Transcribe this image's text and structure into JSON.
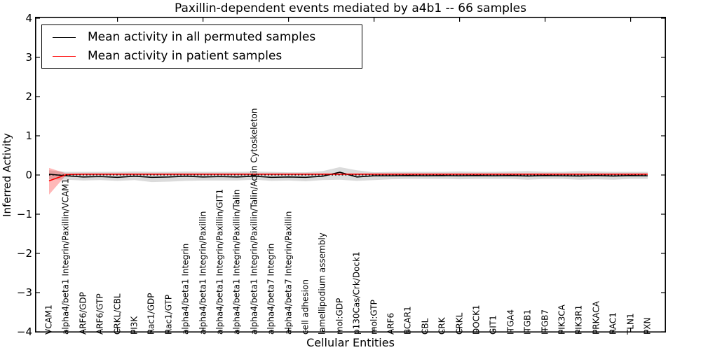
{
  "title": "Paxillin-dependent events mediated by a4b1 -- 66 samples",
  "axes": {
    "xlabel": "Cellular Entities",
    "ylabel": "Inferred Activity",
    "ytick_labels": [
      "4",
      "3",
      "2",
      "1",
      "0",
      "−1",
      "−2",
      "−3",
      "−4"
    ]
  },
  "legend": {
    "position": "upper left",
    "entries": [
      {
        "label": "Mean activity in all permuted samples",
        "color": "#000000"
      },
      {
        "label": "Mean activity in patient samples",
        "color": "#ff0000"
      }
    ]
  },
  "colors": {
    "permuted_line": "#000000",
    "patient_line": "#ff0000",
    "permuted_band": "rgba(0,0,0,0.14)",
    "patient_band": "rgba(255,0,0,0.28)",
    "frame": "#000000",
    "background": "#ffffff"
  },
  "chart_data": {
    "type": "line",
    "title": "Paxillin-dependent events mediated by a4b1 -- 66 samples",
    "xlabel": "Cellular Entities",
    "ylabel": "Inferred Activity",
    "ylim": [
      -4,
      4
    ],
    "yticks": [
      -4,
      -3,
      -2,
      -1,
      0,
      1,
      2,
      3,
      4
    ],
    "grid": false,
    "legend_position": "upper left",
    "zero_reference_line": {
      "y": 0,
      "style": "dotted",
      "color": "#000000"
    },
    "xtick_major_indices": [
      4,
      9,
      14,
      19,
      24,
      29,
      34
    ],
    "categories": [
      "VCAM1",
      "alpha4/beta1 Integrin/Paxillin/VCAM1",
      "ARF6/GDP",
      "ARF6/GTP",
      "CRKL/CBL",
      "PI3K",
      "Rac1/GDP",
      "Rac1/GTP",
      "alpha4/beta1 Integrin",
      "alpha4/beta1 Integrin/Paxillin",
      "alpha4/beta1 Integrin/Paxillin/GIT1",
      "alpha4/beta1 Integrin/Paxillin/Talin",
      "alpha4/beta1 Integrin/Paxillin/Talin/Actin Cytoskeleton",
      "alpha4/beta7 Integrin",
      "alpha4/beta7 Integrin/Paxillin",
      "cell adhesion",
      "lamellipodium assembly",
      "mol:GDP",
      "p130Cas/Crk/Dock1",
      "mol:GTP",
      "ARF6",
      "BCAR1",
      "CBL",
      "CRK",
      "CRKL",
      "DOCK1",
      "GIT1",
      "ITGA4",
      "ITGB1",
      "ITGB7",
      "PIK3CA",
      "PIK3R1",
      "PRKACA",
      "RAC1",
      "TLN1",
      "PXN"
    ],
    "series": [
      {
        "name": "Mean activity in all permuted samples",
        "color": "#000000",
        "values": [
          0.02,
          -0.02,
          -0.05,
          -0.04,
          -0.06,
          -0.03,
          -0.06,
          -0.05,
          -0.03,
          -0.05,
          -0.04,
          -0.05,
          -0.03,
          -0.06,
          -0.05,
          -0.06,
          -0.03,
          0.07,
          -0.05,
          -0.02,
          -0.02,
          -0.015,
          -0.02,
          -0.015,
          -0.02,
          -0.015,
          -0.02,
          -0.015,
          -0.025,
          -0.015,
          -0.02,
          -0.025,
          -0.015,
          -0.025,
          -0.015,
          -0.02
        ]
      },
      {
        "name": "Mean activity in patient samples",
        "color": "#ff0000",
        "values": [
          -0.15,
          0.01,
          0.02,
          0.02,
          0.02,
          0.02,
          0.02,
          0.02,
          0.02,
          0.02,
          0.02,
          0.02,
          0.02,
          0.02,
          0.02,
          0.02,
          0.02,
          0.02,
          0.02,
          0.02,
          0.02,
          0.02,
          0.02,
          0.02,
          0.02,
          0.02,
          0.02,
          0.02,
          0.02,
          0.02,
          0.02,
          0.02,
          0.02,
          0.02,
          0.02,
          0.02
        ]
      }
    ],
    "bands": [
      {
        "series": "Mean activity in all permuted samples",
        "fill": "rgba(0,0,0,0.14)",
        "upper": [
          0.12,
          0.08,
          0.08,
          0.08,
          0.08,
          0.09,
          0.08,
          0.08,
          0.09,
          0.08,
          0.08,
          0.08,
          0.09,
          0.08,
          0.07,
          0.07,
          0.1,
          0.2,
          0.12,
          0.07,
          0.08,
          0.08,
          0.08,
          0.08,
          0.09,
          0.08,
          0.08,
          0.09,
          0.1,
          0.08,
          0.08,
          0.1,
          0.09,
          0.08,
          0.08,
          0.08
        ],
        "lower": [
          -0.11,
          -0.12,
          -0.14,
          -0.13,
          -0.15,
          -0.13,
          -0.18,
          -0.17,
          -0.15,
          -0.14,
          -0.14,
          -0.14,
          -0.12,
          -0.15,
          -0.14,
          -0.16,
          -0.13,
          -0.12,
          -0.15,
          -0.13,
          -0.11,
          -0.1,
          -0.1,
          -0.1,
          -0.11,
          -0.1,
          -0.1,
          -0.1,
          -0.12,
          -0.1,
          -0.1,
          -0.12,
          -0.11,
          -0.12,
          -0.1,
          -0.1
        ]
      },
      {
        "series": "Mean activity in patient samples",
        "fill": "rgba(255,0,0,0.28)",
        "upper": [
          0.18,
          0.04,
          0.04,
          0.04,
          0.04,
          0.04,
          0.04,
          0.04,
          0.04,
          0.04,
          0.04,
          0.04,
          0.04,
          0.04,
          0.04,
          0.04,
          0.04,
          0.04,
          0.04,
          0.04,
          0.04,
          0.04,
          0.04,
          0.04,
          0.04,
          0.04,
          0.04,
          0.04,
          0.04,
          0.04,
          0.04,
          0.04,
          0.04,
          0.04,
          0.04,
          0.04
        ],
        "lower": [
          -0.5,
          0.0,
          0.0,
          0.0,
          0.0,
          0.0,
          0.0,
          0.0,
          0.0,
          0.0,
          0.0,
          0.0,
          0.0,
          0.0,
          0.0,
          0.0,
          0.0,
          0.0,
          0.0,
          0.0,
          0.0,
          0.0,
          0.0,
          0.0,
          0.0,
          0.0,
          0.0,
          0.0,
          0.0,
          0.0,
          0.0,
          0.0,
          0.0,
          0.0,
          0.0,
          0.0
        ]
      }
    ]
  }
}
